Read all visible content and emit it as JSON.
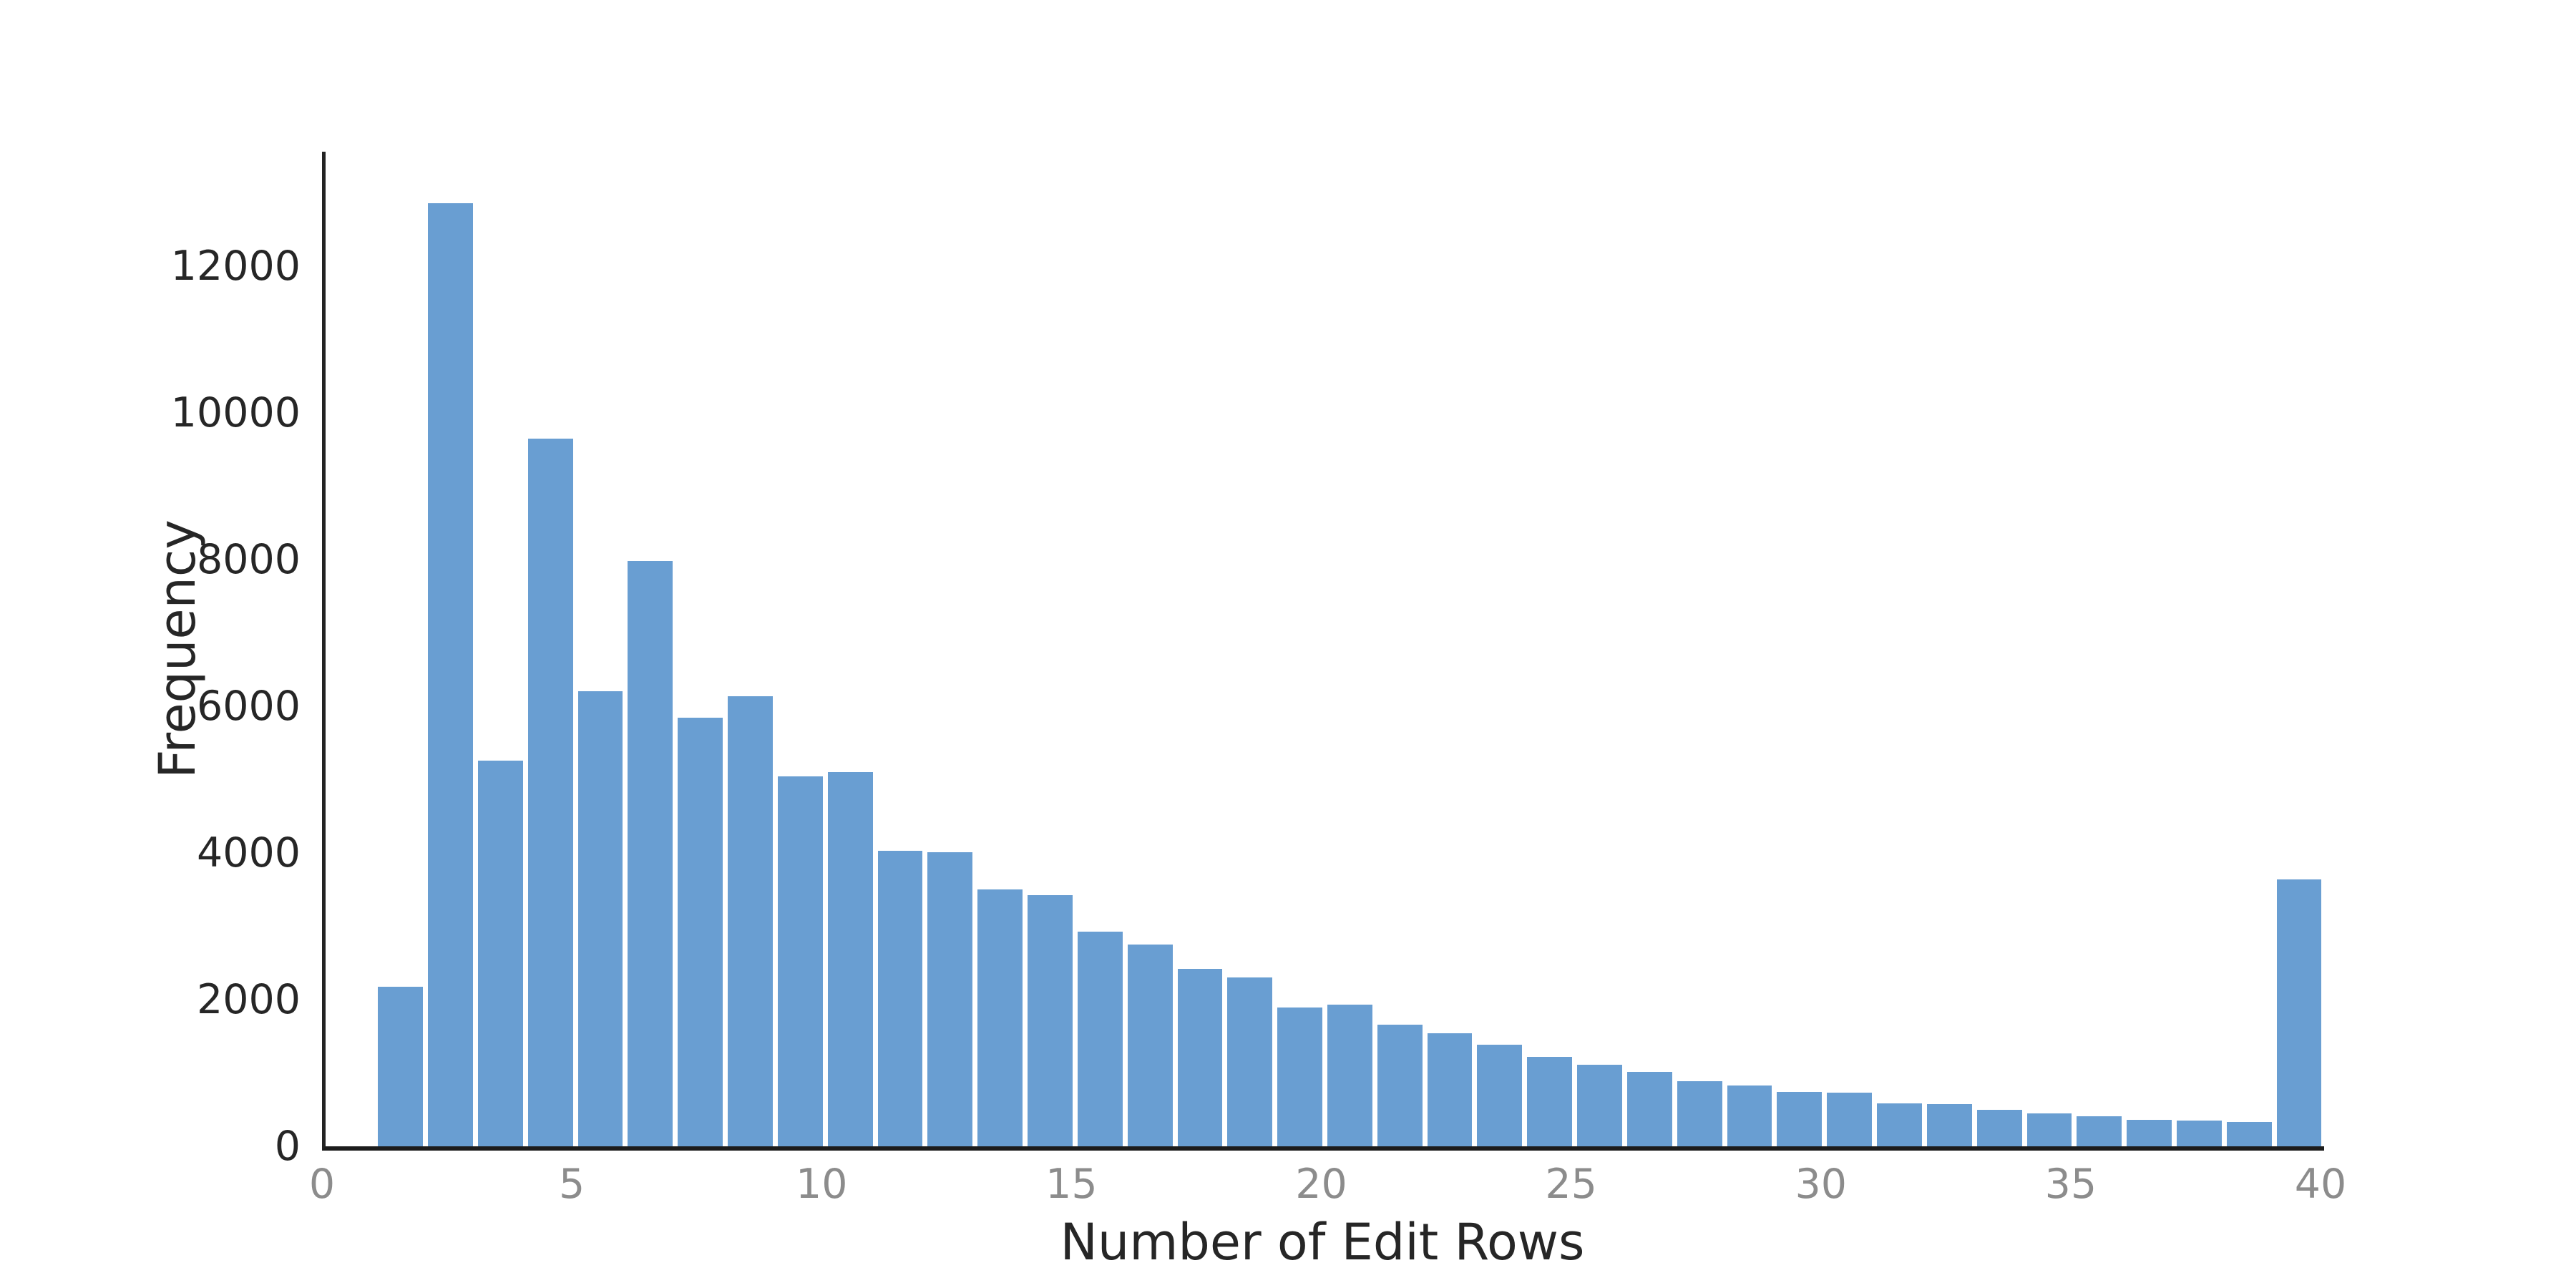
{
  "chart_data": {
    "type": "bar",
    "subtype": "histogram",
    "title": "",
    "xlabel": "Number of Edit Rows",
    "ylabel": "Frequency",
    "bar_color": "#699ed2",
    "spine_color": "#232323",
    "ytick_color": "#262626",
    "xtick_color": "#8c8c8c",
    "grid": false,
    "legend": false,
    "xlim": [
      0,
      40
    ],
    "ylim": [
      0,
      13560
    ],
    "xticks": [
      0,
      5,
      10,
      15,
      20,
      25,
      30,
      35,
      40
    ],
    "yticks": [
      0,
      2000,
      4000,
      6000,
      8000,
      10000,
      12000
    ],
    "bin_width": 1,
    "bin_starts": [
      1,
      2,
      3,
      4,
      5,
      6,
      7,
      8,
      9,
      10,
      11,
      12,
      13,
      14,
      15,
      16,
      17,
      18,
      19,
      20,
      21,
      22,
      23,
      24,
      25,
      26,
      27,
      28,
      29,
      30,
      31,
      32,
      33,
      34,
      35,
      36,
      37,
      38,
      39
    ],
    "values": [
      2180,
      12860,
      5260,
      9650,
      6200,
      7980,
      5840,
      6140,
      5040,
      5100,
      4030,
      4010,
      3500,
      3420,
      2930,
      2750,
      2420,
      2300,
      1890,
      1930,
      1660,
      1540,
      1390,
      1220,
      1110,
      1010,
      890,
      830,
      740,
      730,
      590,
      575,
      500,
      445,
      410,
      360,
      350,
      330,
      3640
    ]
  }
}
